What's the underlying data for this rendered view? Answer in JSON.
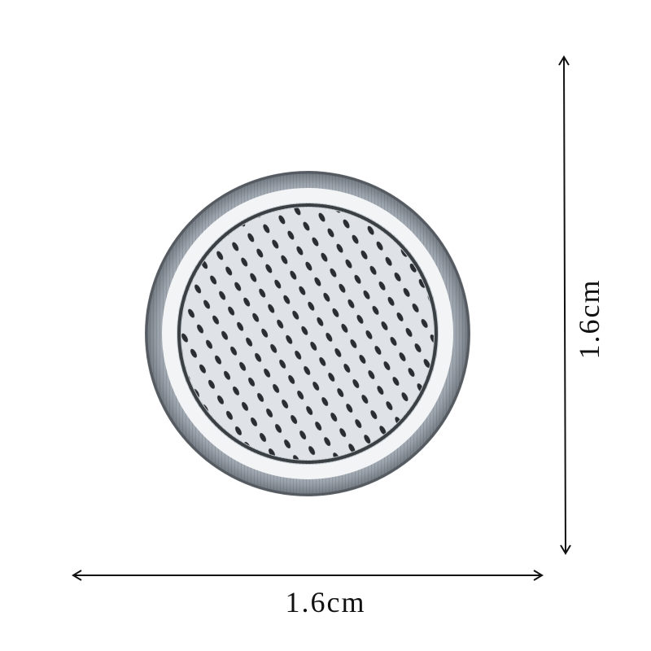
{
  "dimensions": {
    "width": "1.6cm",
    "height": "1.6cm"
  }
}
